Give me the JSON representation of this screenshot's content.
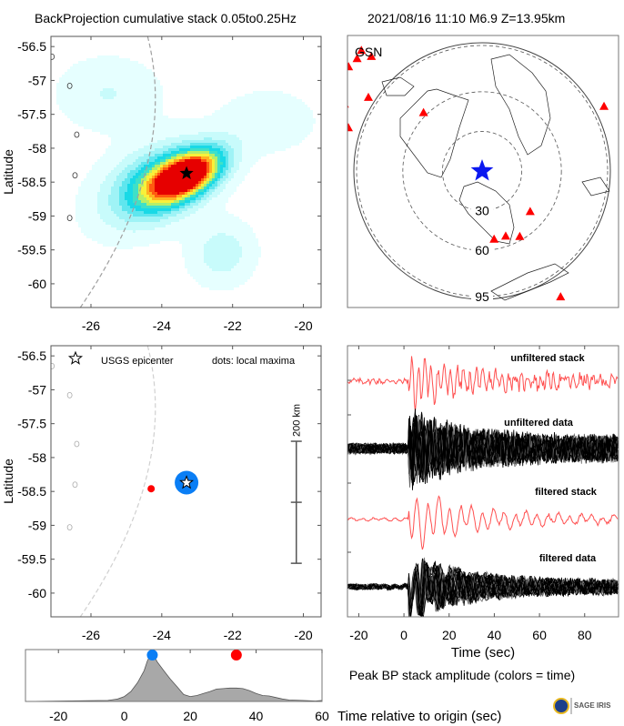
{
  "header": {
    "title_left": "BackProjection cumulative stack 0.05to0.25Hz",
    "title_right": "2021/08/16 11:10  M6.9  Z=13.95km"
  },
  "chart_data": [
    {
      "id": "bp-map",
      "type": "heatmap",
      "title": "",
      "ylabel": "Latitude",
      "xlabel": "",
      "xlim": [
        -27.13,
        -19.5
      ],
      "ylim": [
        -60.35,
        -56.35
      ],
      "xticks": [
        -26,
        -24,
        -22,
        -20
      ],
      "yticks": [
        -56.5,
        -57,
        -57.5,
        -58,
        -58.5,
        -59,
        -59.5,
        -60
      ],
      "epicenter": {
        "lon": -23.3,
        "lat": -58.37,
        "label": "USGS epicenter"
      },
      "peak": {
        "lon": -23.3,
        "lat": -58.37,
        "value": 1.0
      },
      "blobs": [
        {
          "lon": -23.3,
          "lat": -58.4,
          "sx": 1.3,
          "sy": 0.42,
          "rot": -28,
          "amp": 1.0
        },
        {
          "lon": -24.2,
          "lat": -58.55,
          "sx": 1.8,
          "sy": 0.7,
          "rot": -28,
          "amp": 0.45
        },
        {
          "lon": -22.3,
          "lat": -59.55,
          "sx": 1.0,
          "sy": 0.6,
          "rot": -30,
          "amp": 0.18
        },
        {
          "lon": -25.5,
          "lat": -57.2,
          "sx": 1.6,
          "sy": 0.7,
          "rot": 0,
          "amp": 0.12
        },
        {
          "lon": -21.0,
          "lat": -57.6,
          "sx": 1.5,
          "sy": 0.6,
          "rot": 0,
          "amp": 0.1
        }
      ],
      "colormap": [
        "#ffffff",
        "#e6ffff",
        "#c8fbfb",
        "#9ff3f6",
        "#5fe6ee",
        "#19d9e6",
        "#3fe0c8",
        "#b5ee6a",
        "#f8f03a",
        "#ffb020",
        "#ff5a10",
        "#e60000"
      ],
      "gcarc_line_color": "#a0a0a0",
      "islands": [
        {
          "lon": -27.1,
          "lat": -56.65
        },
        {
          "lon": -26.6,
          "lat": -57.08
        },
        {
          "lon": -26.4,
          "lat": -57.8
        },
        {
          "lon": -26.45,
          "lat": -58.4
        },
        {
          "lon": -26.6,
          "lat": -59.03
        }
      ]
    },
    {
      "id": "station-map",
      "type": "scatter",
      "title": "GSN",
      "rings_deg": [
        30,
        60,
        95
      ],
      "center_marker": "blue-star",
      "stations": [
        {
          "az": -52,
          "dist": 135
        },
        {
          "az": -48,
          "dist": 134
        },
        {
          "az": -45,
          "dist": 136
        },
        {
          "az": -44,
          "dist": 127
        },
        {
          "az": -62,
          "dist": 132
        },
        {
          "az": -64,
          "dist": 122
        },
        {
          "az": -57,
          "dist": 108
        },
        {
          "az": -72,
          "dist": 112
        },
        {
          "az": -45,
          "dist": 66
        },
        {
          "az": 62,
          "dist": 110
        },
        {
          "az": 130,
          "dist": 50
        },
        {
          "az": 170,
          "dist": 55
        },
        {
          "az": 160,
          "dist": 55
        },
        {
          "az": 150,
          "dist": 60
        },
        {
          "az": 148,
          "dist": 118
        },
        {
          "az": 178,
          "dist": 118
        },
        {
          "az": 176,
          "dist": 128
        },
        {
          "az": 172,
          "dist": 130
        },
        {
          "az": 168,
          "dist": 126
        },
        {
          "az": 164,
          "dist": 131
        },
        {
          "az": 160,
          "dist": 125
        },
        {
          "az": 170,
          "dist": 135
        },
        {
          "az": 166,
          "dist": 138
        },
        {
          "az": 174,
          "dist": 136
        },
        {
          "az": 162,
          "dist": 137
        },
        {
          "az": 158,
          "dist": 130
        },
        {
          "az": 203,
          "dist": 125
        }
      ],
      "station_color": "#ff0000"
    },
    {
      "id": "maxima-map",
      "type": "scatter",
      "ylabel": "Latitude",
      "xlim": [
        -27.13,
        -19.5
      ],
      "ylim": [
        -60.35,
        -56.35
      ],
      "xticks": [
        -26,
        -24,
        -22,
        -20
      ],
      "yticks": [
        -56.5,
        -57,
        -57.5,
        -58,
        -58.5,
        -59,
        -59.5,
        -60
      ],
      "legend_star": "USGS epicenter",
      "legend_dots": "dots: local maxima",
      "points": [
        {
          "lon": -23.3,
          "lat": -58.37,
          "t": 8.5,
          "color": "#0a7ef5",
          "size": "large"
        },
        {
          "lon": -24.3,
          "lat": -58.46,
          "t": 34,
          "color": "#ff0000",
          "size": "small"
        }
      ],
      "scalebar": {
        "label": "200 km",
        "lat_top": -57.76,
        "lat_bottom": -59.56,
        "lat_mid": -58.66,
        "lon": -20.2
      }
    },
    {
      "id": "seismograms",
      "type": "line",
      "xlabel": "Time (sec)",
      "xlim": [
        -25,
        95
      ],
      "xticks": [
        -20,
        0,
        20,
        40,
        60,
        80
      ],
      "panels": [
        {
          "label": "unfiltered stack",
          "color": "#ff4040",
          "kind": "stack",
          "filtered": false
        },
        {
          "label": "unfiltered data",
          "color": "#000000",
          "kind": "data",
          "filtered": false
        },
        {
          "label": "filtered stack",
          "color": "#ff4040",
          "kind": "stack",
          "filtered": true
        },
        {
          "label": "filtered data",
          "color": "#000000",
          "kind": "data",
          "filtered": true
        }
      ]
    },
    {
      "id": "peak-amplitude",
      "type": "area",
      "title": "Peak BP stack amplitude (colors = time)",
      "xlabel": "Time relative to origin (sec)",
      "xlim": [
        -30,
        60
      ],
      "ylim": [
        0,
        1.05
      ],
      "xticks": [
        -20,
        0,
        20,
        40,
        60
      ],
      "x": [
        -30,
        -5,
        -2,
        0,
        2,
        4,
        6,
        7,
        8,
        8.5,
        9,
        10,
        12,
        14,
        16,
        18,
        20,
        22,
        24,
        26,
        28,
        30,
        32,
        34,
        36,
        38,
        40,
        42,
        44,
        46,
        48,
        50,
        54,
        58,
        60
      ],
      "y": [
        0,
        0.02,
        0.05,
        0.1,
        0.2,
        0.38,
        0.62,
        0.82,
        0.95,
        1.0,
        0.92,
        0.8,
        0.62,
        0.45,
        0.3,
        0.14,
        0.1,
        0.12,
        0.16,
        0.2,
        0.25,
        0.26,
        0.27,
        0.27,
        0.26,
        0.22,
        0.16,
        0.12,
        0.11,
        0.08,
        0.05,
        0.03,
        0.02,
        0.01,
        0.02
      ],
      "area_color": "#a8a8a8",
      "markers": [
        {
          "t": 8.5,
          "color": "#0a7ef5"
        },
        {
          "t": 34,
          "color": "#ff0000"
        }
      ]
    }
  ],
  "logo": {
    "label": "SAGE IRIS"
  }
}
